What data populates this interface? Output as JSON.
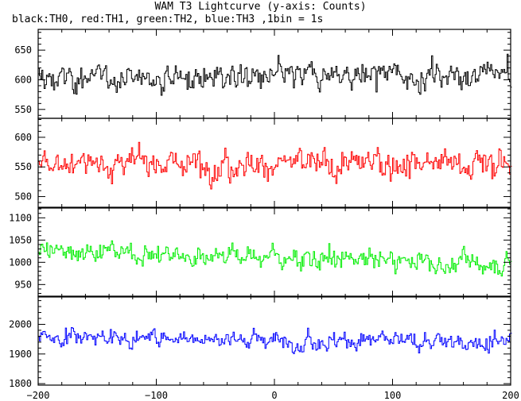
{
  "title": "WAM T3 Lightcurve (y-axis: Counts)",
  "subtitle": "black:TH0, red:TH1, green:TH2, blue:TH3 ,1bin = 1s",
  "chart_data": {
    "type": "line",
    "x": {
      "min": -200,
      "max": 200,
      "step": 1,
      "ticks": [
        -200,
        -100,
        0,
        100,
        200
      ]
    },
    "grid": false,
    "legend": "none",
    "panels": [
      {
        "key": "TH0",
        "color": "#000000",
        "ylim": [
          535,
          685
        ],
        "ticks": [
          550,
          600,
          650
        ],
        "model": {
          "mean": 605,
          "noise_sd": 25,
          "smooth": 0.45,
          "trend": 0.02
        }
      },
      {
        "key": "TH1",
        "color": "#ff0000",
        "ylim": [
          482,
          632
        ],
        "ticks": [
          500,
          550,
          600
        ],
        "model": {
          "mean": 556,
          "noise_sd": 27,
          "smooth": 0.45,
          "trend": 0.0
        }
      },
      {
        "key": "TH2",
        "color": "#00ee00",
        "ylim": [
          922,
          1122
        ],
        "ticks": [
          950,
          1000,
          1050,
          1100
        ],
        "model": {
          "mean": 1012,
          "noise_sd": 30,
          "smooth": 0.55,
          "trend": -0.08
        }
      },
      {
        "key": "TH3",
        "color": "#0000ff",
        "ylim": [
          1795,
          2095
        ],
        "ticks": [
          1800,
          1900,
          2000
        ],
        "model": {
          "mean": 1950,
          "noise_sd": 38,
          "smooth": 0.55,
          "trend": -0.05
        }
      }
    ]
  }
}
